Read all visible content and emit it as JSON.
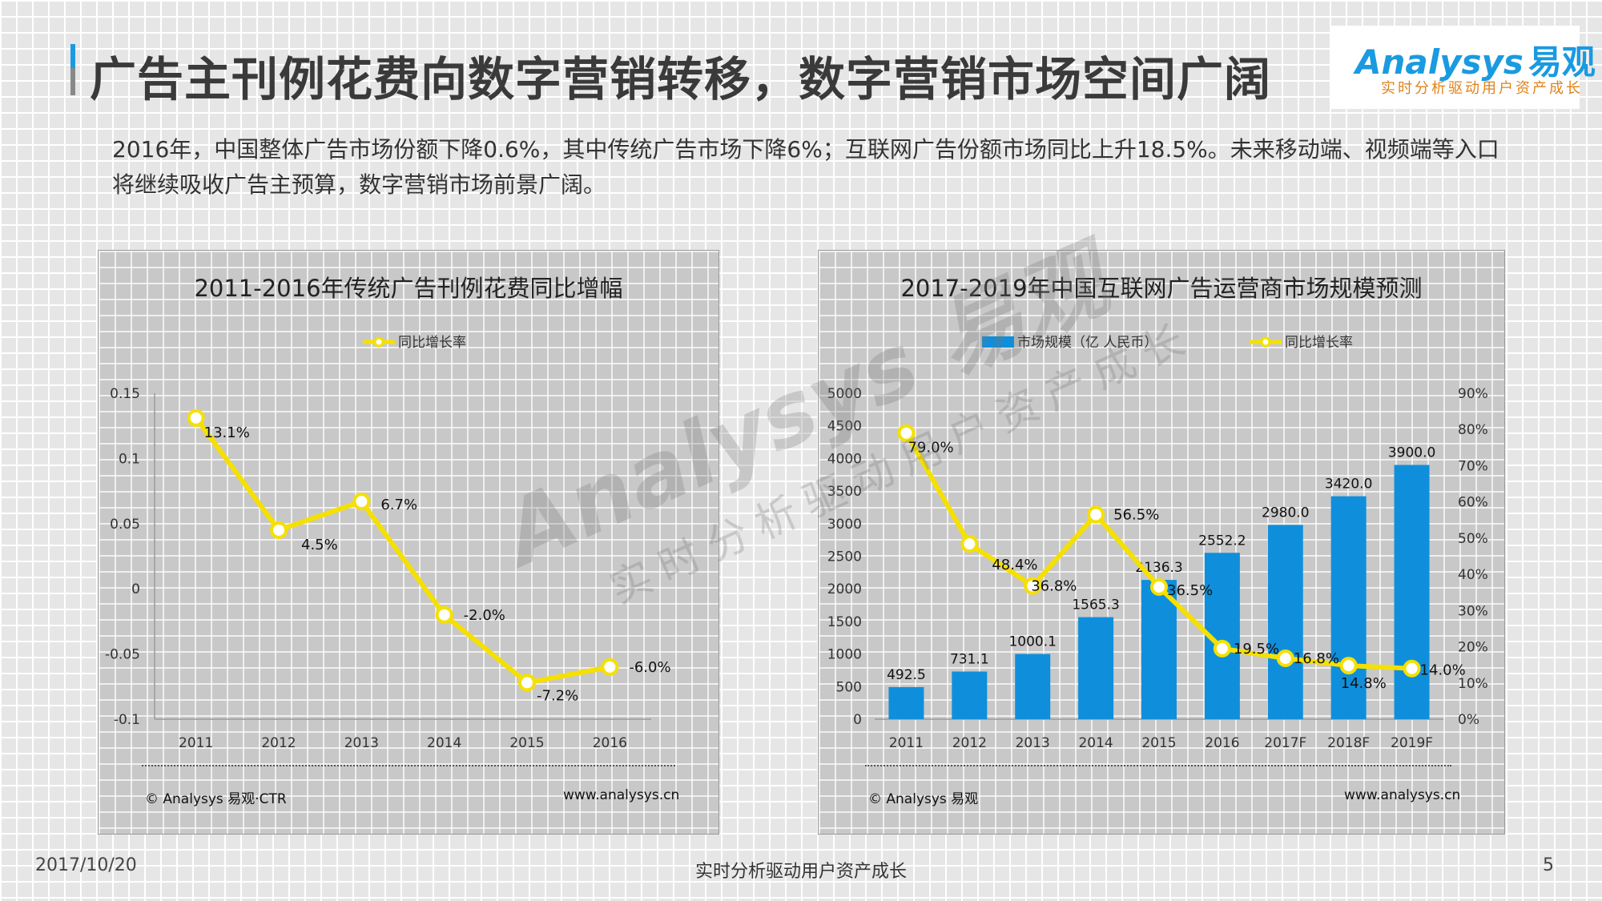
{
  "header": {
    "title": "广告主刊例花费向数字营销转移，数字营销市场空间广阔",
    "logo_main": "Analysys",
    "logo_cn": "易观",
    "logo_slogan": "实时分析驱动用户资产成长"
  },
  "intro_text": "2016年，中国整体广告市场份额下降0.6%，其中传统广告市场下降6%；互联网广告份额市场同比上升18.5%。未来移动端、视频端等入口将继续吸收广告主预算，数字营销市场前景广阔。",
  "watermark": {
    "main": "Analysys 易观",
    "sub": "实时分析驱动用户资产成长"
  },
  "left_chart": {
    "title": "2011-2016年传统广告刊例花费同比增幅",
    "source": "© Analysys 易观·CTR",
    "website": "www.analysys.cn"
  },
  "right_chart": {
    "title": "2017-2019年中国互联网广告运营商市场规模预测",
    "source": "© Analysys 易观",
    "website": "www.analysys.cn"
  },
  "footer": {
    "date": "2017/10/20",
    "slogan": "实时分析驱动用户资产成长",
    "page": "5"
  },
  "colors": {
    "accent": "#1a9ae0",
    "line": "#f5e000",
    "bar": "#0f8fdb",
    "orange": "#e0821a"
  },
  "chart_data": [
    {
      "type": "line",
      "title": "2011-2016年传统广告刊例花费同比增幅",
      "categories": [
        "2011",
        "2012",
        "2013",
        "2014",
        "2015",
        "2016"
      ],
      "series": [
        {
          "name": "同比增长率",
          "values": [
            0.131,
            0.045,
            0.067,
            -0.02,
            -0.072,
            -0.06
          ],
          "labels": [
            "13.1%",
            "4.5%",
            "6.7%",
            "-2.0%",
            "-7.2%",
            "-6.0%"
          ]
        }
      ],
      "ylim": [
        -0.1,
        0.15
      ],
      "yticks": [
        "0.15",
        "0.1",
        "0.05",
        "0",
        "-0.05",
        "-0.1"
      ],
      "legend": "top-center"
    },
    {
      "type": "bar",
      "title": "2017-2019年中国互联网广告运营商市场规模预测",
      "categories": [
        "2011",
        "2012",
        "2013",
        "2014",
        "2015",
        "2016",
        "2017F",
        "2018F",
        "2019F"
      ],
      "series": [
        {
          "name": "市场规模（亿 人民币）",
          "type": "bar",
          "values": [
            492.5,
            731.1,
            1000.1,
            1565.3,
            2136.3,
            2552.2,
            2980.0,
            3420.0,
            3900.0
          ],
          "labels": [
            "492.5",
            "731.1",
            "1000.1",
            "1565.3",
            "2136.3",
            "2552.2",
            "2980.0",
            "3420.0",
            "3900.0"
          ]
        },
        {
          "name": "同比增长率",
          "type": "line",
          "axis": "right",
          "values": [
            79.0,
            48.4,
            36.8,
            56.5,
            36.5,
            19.5,
            16.8,
            14.8,
            14.0
          ],
          "labels": [
            "79.0%",
            "48.4%",
            "36.8%",
            "56.5%",
            "36.5%",
            "19.5%",
            "16.8%",
            "14.8%",
            "14.0%"
          ]
        }
      ],
      "ylim": [
        0,
        5000
      ],
      "yticks": [
        "5000",
        "4500",
        "4000",
        "3500",
        "3000",
        "2500",
        "2000",
        "1500",
        "1000",
        "500",
        "0"
      ],
      "y2lim": [
        0,
        90
      ],
      "y2ticks": [
        "90%",
        "80%",
        "70%",
        "60%",
        "50%",
        "40%",
        "30%",
        "20%",
        "10%",
        "0%"
      ],
      "legend": "top-center"
    }
  ]
}
